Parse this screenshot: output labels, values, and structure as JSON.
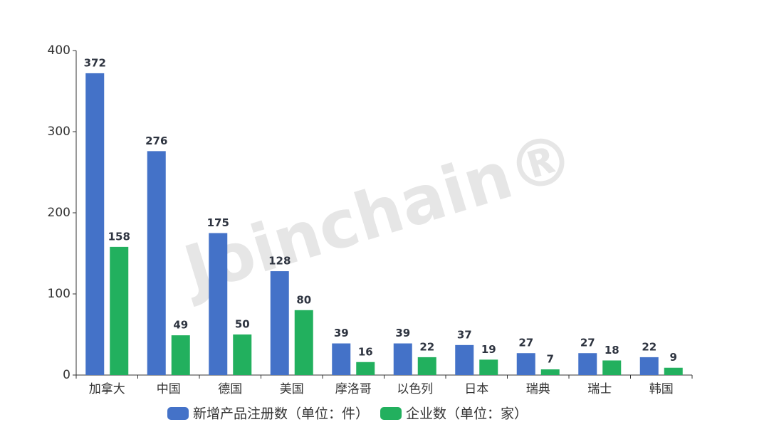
{
  "chart_data": {
    "type": "bar",
    "watermark": "Joinchain®",
    "categories": [
      "加拿大",
      "中国",
      "德国",
      "美国",
      "摩洛哥",
      "以色列",
      "日本",
      "瑞典",
      "瑞士",
      "韩国"
    ],
    "series": [
      {
        "name": "新增产品注册数（单位：件）",
        "color": "#4472c8",
        "values": [
          372,
          276,
          175,
          128,
          39,
          39,
          37,
          27,
          27,
          22
        ]
      },
      {
        "name": "企业数（单位：家）",
        "color": "#22b05e",
        "values": [
          158,
          49,
          50,
          80,
          16,
          22,
          19,
          7,
          18,
          9
        ]
      }
    ],
    "ylim": [
      0,
      400
    ],
    "yticks": [
      0,
      100,
      200,
      300,
      400
    ],
    "grid": false,
    "legend": "bottom"
  }
}
